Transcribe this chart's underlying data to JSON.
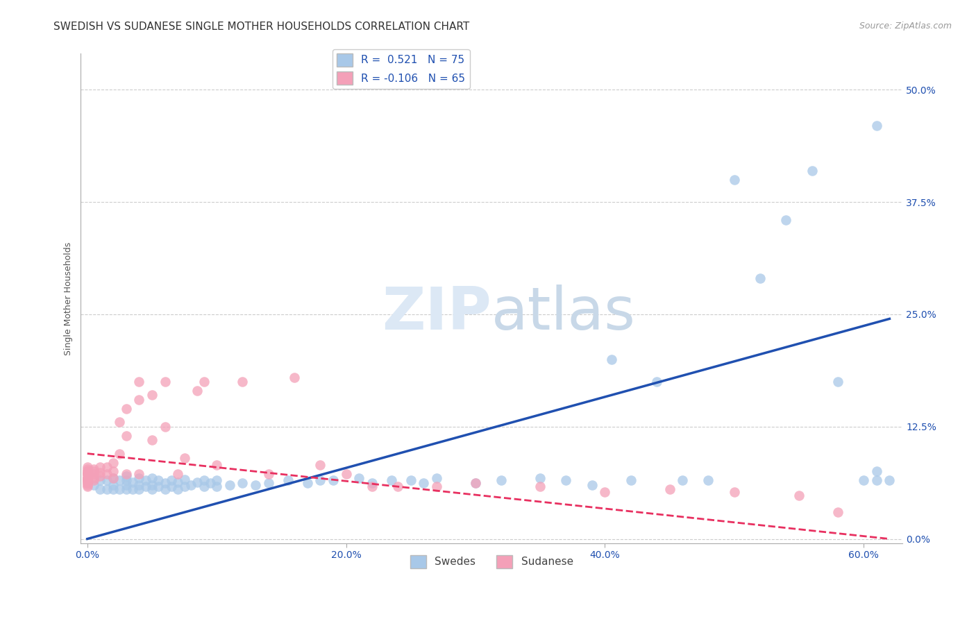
{
  "title": "SWEDISH VS SUDANESE SINGLE MOTHER HOUSEHOLDS CORRELATION CHART",
  "source": "Source: ZipAtlas.com",
  "ylabel": "Single Mother Households",
  "xlabel_ticks": [
    "0.0%",
    "20.0%",
    "40.0%",
    "60.0%"
  ],
  "xlabel_tick_vals": [
    0.0,
    0.2,
    0.4,
    0.6
  ],
  "ylabel_ticks": [
    "0.0%",
    "12.5%",
    "25.0%",
    "37.5%",
    "50.0%"
  ],
  "ylabel_tick_vals": [
    0.0,
    0.125,
    0.25,
    0.375,
    0.5
  ],
  "xlim": [
    -0.005,
    0.63
  ],
  "ylim": [
    -0.005,
    0.54
  ],
  "R_swedes": 0.521,
  "N_swedes": 75,
  "R_sudanese": -0.106,
  "N_sudanese": 65,
  "swedes_color": "#a8c8e8",
  "sudanese_color": "#f4a0b8",
  "swedes_line_color": "#2050b0",
  "sudanese_line_color": "#e83060",
  "background_color": "#ffffff",
  "grid_color": "#cccccc",
  "title_fontsize": 11,
  "axis_label_fontsize": 9,
  "tick_fontsize": 10,
  "watermark_color": "#dce8f5",
  "legend_fontsize": 11,
  "swedes_x": [
    0.005,
    0.01,
    0.01,
    0.015,
    0.015,
    0.02,
    0.02,
    0.02,
    0.025,
    0.025,
    0.03,
    0.03,
    0.03,
    0.03,
    0.035,
    0.035,
    0.04,
    0.04,
    0.04,
    0.045,
    0.045,
    0.05,
    0.05,
    0.05,
    0.055,
    0.055,
    0.06,
    0.06,
    0.065,
    0.065,
    0.07,
    0.07,
    0.075,
    0.075,
    0.08,
    0.085,
    0.09,
    0.09,
    0.095,
    0.1,
    0.1,
    0.11,
    0.12,
    0.13,
    0.14,
    0.155,
    0.17,
    0.18,
    0.19,
    0.21,
    0.22,
    0.235,
    0.25,
    0.26,
    0.27,
    0.3,
    0.32,
    0.35,
    0.37,
    0.39,
    0.405,
    0.42,
    0.44,
    0.46,
    0.48,
    0.5,
    0.52,
    0.54,
    0.56,
    0.58,
    0.6,
    0.61,
    0.61,
    0.61,
    0.62
  ],
  "swedes_y": [
    0.06,
    0.055,
    0.065,
    0.055,
    0.065,
    0.055,
    0.06,
    0.068,
    0.055,
    0.065,
    0.055,
    0.06,
    0.065,
    0.07,
    0.055,
    0.063,
    0.055,
    0.06,
    0.068,
    0.058,
    0.065,
    0.055,
    0.06,
    0.068,
    0.058,
    0.065,
    0.055,
    0.062,
    0.058,
    0.065,
    0.055,
    0.063,
    0.058,
    0.066,
    0.06,
    0.063,
    0.058,
    0.065,
    0.062,
    0.058,
    0.065,
    0.06,
    0.062,
    0.06,
    0.062,
    0.065,
    0.062,
    0.065,
    0.065,
    0.068,
    0.062,
    0.065,
    0.065,
    0.062,
    0.068,
    0.062,
    0.065,
    0.068,
    0.065,
    0.06,
    0.2,
    0.065,
    0.175,
    0.065,
    0.065,
    0.4,
    0.29,
    0.355,
    0.41,
    0.175,
    0.065,
    0.065,
    0.075,
    0.46,
    0.065
  ],
  "sudanese_x": [
    0.0,
    0.0,
    0.0,
    0.0,
    0.0,
    0.0,
    0.0,
    0.0,
    0.0,
    0.0,
    0.0,
    0.0,
    0.0,
    0.0,
    0.0,
    0.0,
    0.0,
    0.0,
    0.0,
    0.0,
    0.005,
    0.005,
    0.005,
    0.005,
    0.005,
    0.01,
    0.01,
    0.01,
    0.015,
    0.015,
    0.02,
    0.02,
    0.02,
    0.025,
    0.025,
    0.03,
    0.03,
    0.03,
    0.04,
    0.04,
    0.04,
    0.05,
    0.05,
    0.06,
    0.06,
    0.07,
    0.075,
    0.085,
    0.09,
    0.1,
    0.12,
    0.14,
    0.16,
    0.18,
    0.2,
    0.22,
    0.24,
    0.27,
    0.3,
    0.35,
    0.4,
    0.45,
    0.5,
    0.55,
    0.58
  ],
  "sudanese_y": [
    0.065,
    0.068,
    0.07,
    0.072,
    0.074,
    0.065,
    0.068,
    0.072,
    0.075,
    0.078,
    0.06,
    0.062,
    0.064,
    0.066,
    0.072,
    0.075,
    0.08,
    0.058,
    0.062,
    0.068,
    0.072,
    0.075,
    0.078,
    0.065,
    0.068,
    0.07,
    0.074,
    0.08,
    0.072,
    0.08,
    0.068,
    0.075,
    0.085,
    0.13,
    0.095,
    0.072,
    0.115,
    0.145,
    0.072,
    0.155,
    0.175,
    0.11,
    0.16,
    0.125,
    0.175,
    0.072,
    0.09,
    0.165,
    0.175,
    0.082,
    0.175,
    0.072,
    0.18,
    0.082,
    0.072,
    0.058,
    0.058,
    0.058,
    0.062,
    0.058,
    0.052,
    0.055,
    0.052,
    0.048,
    0.03
  ],
  "blue_line_x0": 0.0,
  "blue_line_y0": 0.0,
  "blue_line_x1": 0.62,
  "blue_line_y1": 0.245,
  "pink_line_x0": 0.0,
  "pink_line_y0": 0.095,
  "pink_line_x1": 0.62,
  "pink_line_y1": 0.0
}
